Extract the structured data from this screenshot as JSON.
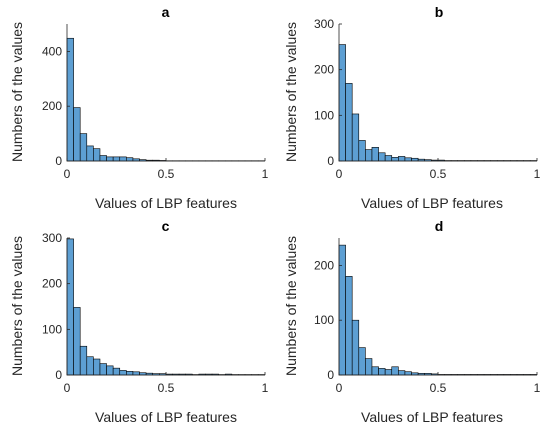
{
  "figure": {
    "bar_color": "#5d9fd3",
    "edge_color": "#000000"
  },
  "chart_data": [
    {
      "type": "bar",
      "title": "a",
      "xlabel": "Values of LBP features",
      "ylabel": "Numbers of the values",
      "xlim": [
        0,
        1
      ],
      "ylim": [
        0,
        500
      ],
      "xticks": [
        0,
        0.5,
        1
      ],
      "xtick_labels": [
        "0",
        "0.5",
        "1"
      ],
      "yticks": [
        0,
        200,
        400
      ],
      "ytick_labels": [
        "0",
        "200",
        "400"
      ],
      "bin_width": 0.0333,
      "values": [
        448,
        195,
        100,
        55,
        45,
        20,
        15,
        15,
        15,
        12,
        8,
        5,
        3,
        3,
        2,
        1,
        1,
        1,
        1,
        1,
        1,
        1,
        1,
        1,
        1,
        1,
        1,
        1,
        1,
        1
      ]
    },
    {
      "type": "bar",
      "title": "b",
      "xlabel": "Values of LBP features",
      "ylabel": "Numbers of the values",
      "xlim": [
        0,
        1
      ],
      "ylim": [
        0,
        300
      ],
      "xticks": [
        0,
        0.5,
        1
      ],
      "xtick_labels": [
        "0",
        "0.5",
        "1"
      ],
      "yticks": [
        0,
        100,
        200,
        300
      ],
      "ytick_labels": [
        "0",
        "100",
        "200",
        "300"
      ],
      "bin_width": 0.0333,
      "values": [
        255,
        170,
        103,
        45,
        25,
        30,
        18,
        12,
        8,
        10,
        7,
        6,
        4,
        3,
        2,
        2,
        1,
        1,
        1,
        1,
        1,
        1,
        1,
        1,
        1,
        1,
        1,
        1,
        1,
        1
      ]
    },
    {
      "type": "bar",
      "title": "c",
      "xlabel": "Values of LBP features",
      "ylabel": "Numbers of the values",
      "xlim": [
        0,
        1
      ],
      "ylim": [
        0,
        300
      ],
      "xticks": [
        0,
        0.5,
        1
      ],
      "xtick_labels": [
        "0",
        "0.5",
        "1"
      ],
      "yticks": [
        0,
        100,
        200,
        300
      ],
      "ytick_labels": [
        "0",
        "100",
        "200",
        "300"
      ],
      "bin_width": 0.0333,
      "values": [
        298,
        148,
        63,
        40,
        35,
        25,
        20,
        15,
        10,
        8,
        7,
        5,
        4,
        3,
        3,
        2,
        2,
        2,
        2,
        1,
        2,
        2,
        2,
        1,
        2,
        1,
        1,
        1,
        1,
        1
      ]
    },
    {
      "type": "bar",
      "title": "d",
      "xlabel": "Values of LBP features",
      "ylabel": "Numbers of the values",
      "xlim": [
        0,
        1
      ],
      "ylim": [
        0,
        250
      ],
      "xticks": [
        0,
        0.5,
        1
      ],
      "xtick_labels": [
        "0",
        "0.5",
        "1"
      ],
      "yticks": [
        0,
        100,
        200
      ],
      "ytick_labels": [
        "0",
        "100",
        "200"
      ],
      "bin_width": 0.0333,
      "values": [
        237,
        180,
        100,
        50,
        30,
        15,
        12,
        10,
        15,
        8,
        6,
        4,
        3,
        3,
        2,
        1,
        1,
        1,
        1,
        1,
        1,
        1,
        1,
        1,
        1,
        1,
        1,
        1,
        1,
        1
      ]
    }
  ]
}
